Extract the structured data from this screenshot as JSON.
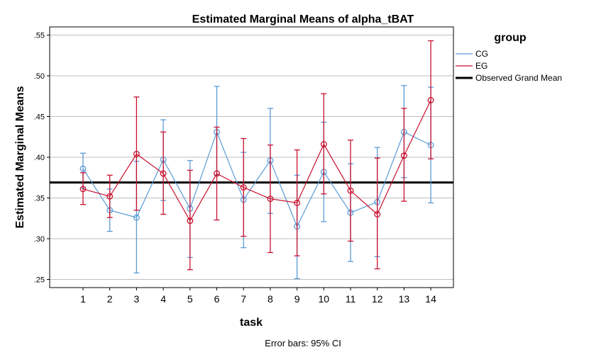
{
  "chart_data": {
    "type": "line",
    "title": "Estimated Marginal Means of alpha_tBAT",
    "xlabel": "task",
    "ylabel": "Estimated Marginal Means",
    "footnote": "Error bars: 95% CI",
    "legend_title": "group",
    "legend_position": "top-right",
    "grid": true,
    "ylim": [
      0.24,
      0.56
    ],
    "yticks": [
      0.25,
      0.3,
      0.35,
      0.4,
      0.45,
      0.5,
      0.55
    ],
    "ytick_labels": [
      ".25",
      ".30",
      ".35",
      ".40",
      ".45",
      ".50",
      ".55"
    ],
    "categories": [
      "1",
      "2",
      "3",
      "4",
      "5",
      "6",
      "7",
      "8",
      "9",
      "10",
      "11",
      "12",
      "13",
      "14"
    ],
    "reference_line": {
      "name": "Observed Grand Mean",
      "value": 0.369,
      "color": "#000000"
    },
    "series": [
      {
        "name": "CG",
        "color": "#5b9bd5",
        "values": [
          0.386,
          0.335,
          0.326,
          0.397,
          0.337,
          0.431,
          0.348,
          0.396,
          0.315,
          0.382,
          0.332,
          0.345,
          0.431,
          0.415
        ],
        "ci_low": [
          0.362,
          0.309,
          0.258,
          0.347,
          0.277,
          0.378,
          0.289,
          0.331,
          0.251,
          0.321,
          0.272,
          0.278,
          0.375,
          0.344
        ],
        "ci_high": [
          0.405,
          0.361,
          0.395,
          0.446,
          0.396,
          0.487,
          0.406,
          0.46,
          0.378,
          0.443,
          0.392,
          0.412,
          0.488,
          0.486
        ]
      },
      {
        "name": "EG",
        "color": "#c8102e",
        "values": [
          0.361,
          0.352,
          0.404,
          0.38,
          0.322,
          0.38,
          0.363,
          0.349,
          0.344,
          0.416,
          0.359,
          0.33,
          0.402,
          0.47
        ],
        "ci_low": [
          0.342,
          0.326,
          0.335,
          0.33,
          0.262,
          0.323,
          0.303,
          0.283,
          0.279,
          0.355,
          0.297,
          0.263,
          0.346,
          0.398
        ],
        "ci_high": [
          0.381,
          0.378,
          0.474,
          0.431,
          0.384,
          0.437,
          0.423,
          0.415,
          0.409,
          0.478,
          0.421,
          0.399,
          0.46,
          0.543
        ]
      }
    ]
  }
}
